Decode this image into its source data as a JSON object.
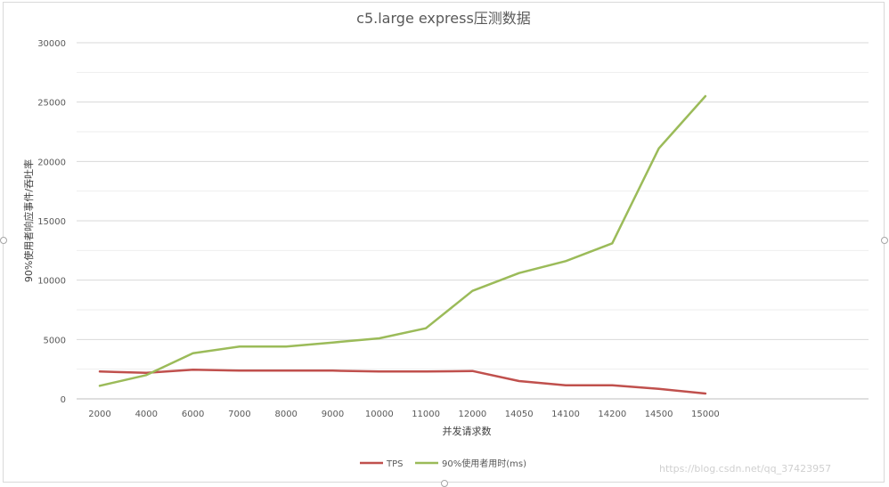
{
  "chart_data": {
    "type": "line",
    "title": "c5.large express压测数据",
    "xlabel": "并发请求数",
    "ylabel": "90%使用者响应事件/吞吐率",
    "categories": [
      "2000",
      "4000",
      "6000",
      "7000",
      "8000",
      "9000",
      "10000",
      "11000",
      "12000",
      "14050",
      "14100",
      "14200",
      "14500",
      "15000"
    ],
    "ylim": [
      0,
      30000
    ],
    "yticks": [
      0,
      5000,
      10000,
      15000,
      20000,
      25000,
      30000
    ],
    "grid": true,
    "legend_position": "bottom",
    "series": [
      {
        "name": "TPS",
        "color": "#c0504d",
        "values": [
          2300,
          2200,
          2450,
          2380,
          2380,
          2380,
          2300,
          2300,
          2350,
          1500,
          1150,
          1150,
          850,
          450
        ]
      },
      {
        "name": "90%使用者用时(ms)",
        "color": "#9bbb59",
        "values": [
          1100,
          2000,
          3850,
          4400,
          4400,
          4750,
          5100,
          5950,
          9100,
          10600,
          11600,
          13100,
          21100,
          25500
        ]
      }
    ]
  },
  "watermark": "https://blog.csdn.net/qq_37423957"
}
